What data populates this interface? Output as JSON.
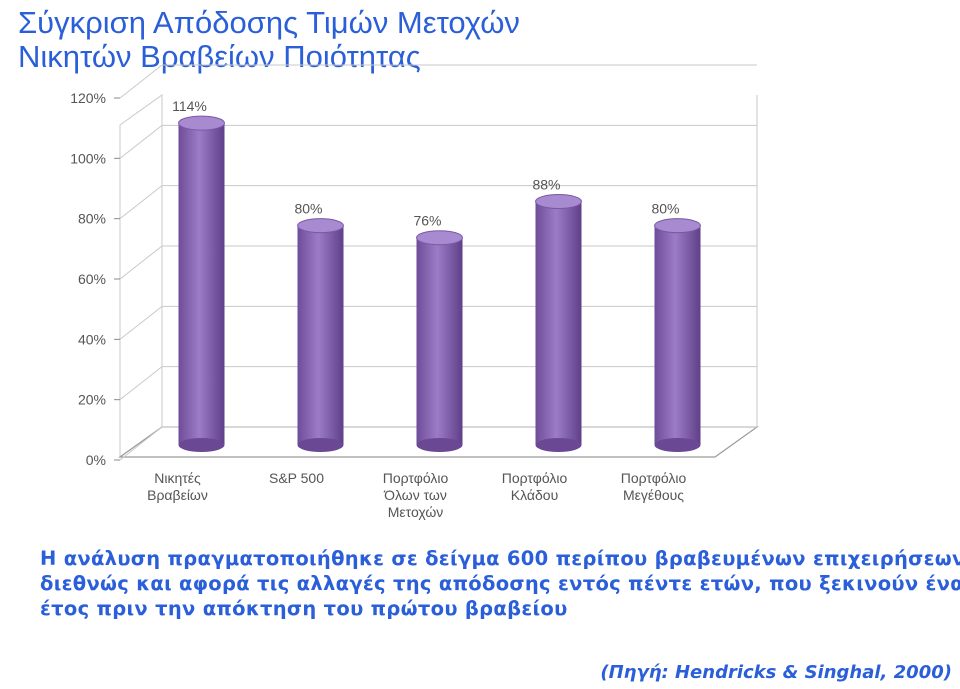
{
  "title": {
    "line1": "Σύγκριση Απόδοσης Τιμών Μετοχών",
    "line2": "Νικητών Βραβείων Ποιότητας"
  },
  "chart_data": {
    "type": "bar",
    "categories": [
      [
        "Νικητές",
        "Βραβείων"
      ],
      [
        "S&P 500"
      ],
      [
        "Πορτφόλιο",
        "Όλων των",
        "Μετοχών"
      ],
      [
        "Πορτφόλιο",
        "Κλάδου"
      ],
      [
        "Πορτφόλιο",
        "Μεγέθους"
      ]
    ],
    "values": [
      114,
      80,
      76,
      88,
      80
    ],
    "data_labels": [
      "114%",
      "80%",
      "76%",
      "88%",
      "80%"
    ],
    "y_ticks": [
      "0%",
      "20%",
      "40%",
      "60%",
      "80%",
      "100%",
      "120%"
    ],
    "ylim": [
      0,
      120
    ],
    "grid": true,
    "bar_color": "#8b67b7"
  },
  "caption": {
    "line1": "Η ανάλυση πραγματοποιήθηκε σε δείγμα 600 περίπου βραβευμένων επιχειρήσεων",
    "line2": "διεθνώς και αφορά τις αλλαγές της απόδοσης εντός πέντε ετών, που ξεκινούν ένα",
    "line3": "έτος πριν την απόκτηση του πρώτου βραβείου"
  },
  "source": "(Πηγή: Hendricks & Singhal, 2000)"
}
